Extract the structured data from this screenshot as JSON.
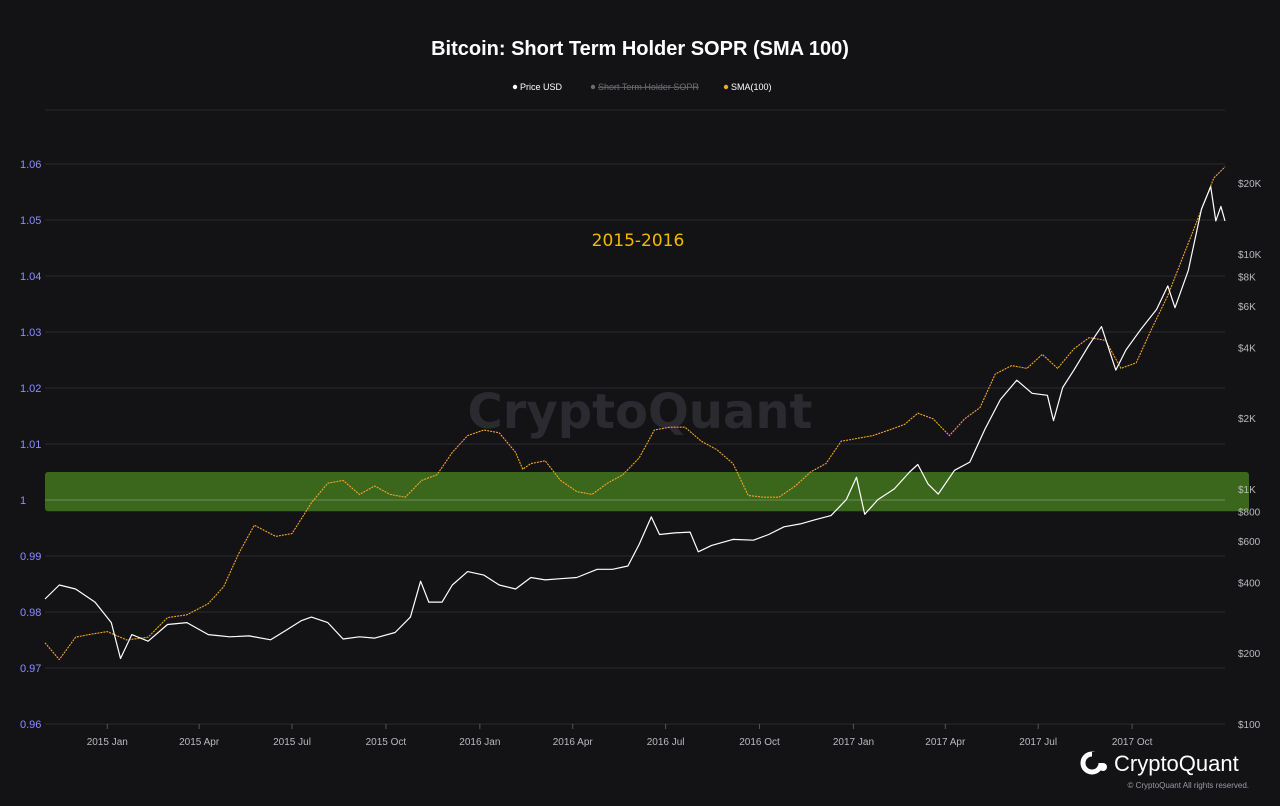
{
  "chart_data": {
    "type": "line",
    "title": "Bitcoin: Short Term Holder SOPR (SMA 100)",
    "legend": {
      "placement": "top-center",
      "items": [
        {
          "label": "Price USD",
          "color": "#ffffff",
          "visible": true
        },
        {
          "label": "Short Term Holder SOPR",
          "color": "#6b6b73",
          "visible": false
        },
        {
          "label": "SMA(100)",
          "color": "#f5a623",
          "visible": true
        }
      ]
    },
    "annotation": "2015-2016",
    "watermark": "CryptoQuant",
    "grid": true,
    "x_axis": {
      "range": [
        "2014-11-01",
        "2017-12-31"
      ],
      "ticks": [
        {
          "date": "2015-01-01",
          "label": "2015 Jan"
        },
        {
          "date": "2015-04-01",
          "label": "2015 Apr"
        },
        {
          "date": "2015-07-01",
          "label": "2015 Jul"
        },
        {
          "date": "2015-10-01",
          "label": "2015 Oct"
        },
        {
          "date": "2016-01-01",
          "label": "2016 Jan"
        },
        {
          "date": "2016-04-01",
          "label": "2016 Apr"
        },
        {
          "date": "2016-07-01",
          "label": "2016 Jul"
        },
        {
          "date": "2016-10-01",
          "label": "2016 Oct"
        },
        {
          "date": "2017-01-01",
          "label": "2017 Jan"
        },
        {
          "date": "2017-04-01",
          "label": "2017 Apr"
        },
        {
          "date": "2017-07-01",
          "label": "2017 Jul"
        },
        {
          "date": "2017-10-01",
          "label": "2017 Oct"
        }
      ]
    },
    "y_left": {
      "range": [
        0.96,
        1.06
      ],
      "ticks": [
        {
          "value": 1.06,
          "label": "1.06"
        },
        {
          "value": 1.05,
          "label": "1.05"
        },
        {
          "value": 1.04,
          "label": "1.04"
        },
        {
          "value": 1.03,
          "label": "1.03"
        },
        {
          "value": 1.02,
          "label": "1.02"
        },
        {
          "value": 1.01,
          "label": "1.01"
        },
        {
          "value": 1.0,
          "label": "1"
        },
        {
          "value": 0.99,
          "label": "0.99"
        },
        {
          "value": 0.98,
          "label": "0.98"
        },
        {
          "value": 0.97,
          "label": "0.97"
        },
        {
          "value": 0.96,
          "label": "0.96"
        }
      ]
    },
    "y_right": {
      "scale": "log",
      "range": [
        100,
        20000
      ],
      "ticks": [
        {
          "value": 20000,
          "label": "$20K"
        },
        {
          "value": 10000,
          "label": "$10K"
        },
        {
          "value": 8000,
          "label": "$8K"
        },
        {
          "value": 6000,
          "label": "$6K"
        },
        {
          "value": 4000,
          "label": "$4K"
        },
        {
          "value": 2000,
          "label": "$2K"
        },
        {
          "value": 1000,
          "label": "$1K"
        },
        {
          "value": 800,
          "label": "$800"
        },
        {
          "value": 600,
          "label": "$600"
        },
        {
          "value": 400,
          "label": "$400"
        },
        {
          "value": 200,
          "label": "$200"
        },
        {
          "value": 100,
          "label": "$100"
        }
      ]
    },
    "highlight_band": {
      "y_from": 0.998,
      "y_to": 1.005,
      "color": "#3d6b1e"
    },
    "series": [
      {
        "name": "SMA(100)",
        "axis": "left",
        "color": "#f5a623",
        "points": [
          [
            "2014-11-01",
            0.9745
          ],
          [
            "2014-11-15",
            0.9715
          ],
          [
            "2014-12-01",
            0.9755
          ],
          [
            "2014-12-15",
            0.976
          ],
          [
            "2015-01-01",
            0.9765
          ],
          [
            "2015-01-20",
            0.975
          ],
          [
            "2015-02-10",
            0.9755
          ],
          [
            "2015-03-01",
            0.979
          ],
          [
            "2015-03-20",
            0.9795
          ],
          [
            "2015-04-10",
            0.9815
          ],
          [
            "2015-04-25",
            0.9845
          ],
          [
            "2015-05-10",
            0.9905
          ],
          [
            "2015-05-25",
            0.9955
          ],
          [
            "2015-06-15",
            0.9935
          ],
          [
            "2015-07-01",
            0.994
          ],
          [
            "2015-07-20",
            0.9995
          ],
          [
            "2015-08-05",
            1.003
          ],
          [
            "2015-08-20",
            1.0035
          ],
          [
            "2015-09-05",
            1.001
          ],
          [
            "2015-09-20",
            1.0025
          ],
          [
            "2015-10-05",
            1.001
          ],
          [
            "2015-10-20",
            1.0005
          ],
          [
            "2015-11-05",
            1.0035
          ],
          [
            "2015-11-20",
            1.0045
          ],
          [
            "2015-12-05",
            1.0085
          ],
          [
            "2015-12-20",
            1.0115
          ],
          [
            "2016-01-05",
            1.0125
          ],
          [
            "2016-01-20",
            1.012
          ],
          [
            "2016-02-05",
            1.0085
          ],
          [
            "2016-02-12",
            1.0055
          ],
          [
            "2016-02-20",
            1.0065
          ],
          [
            "2016-03-05",
            1.007
          ],
          [
            "2016-03-20",
            1.0035
          ],
          [
            "2016-04-05",
            1.0015
          ],
          [
            "2016-04-20",
            1.001
          ],
          [
            "2016-05-05",
            1.003
          ],
          [
            "2016-05-20",
            1.0045
          ],
          [
            "2016-06-05",
            1.0075
          ],
          [
            "2016-06-20",
            1.0125
          ],
          [
            "2016-07-05",
            1.013
          ],
          [
            "2016-07-20",
            1.013
          ],
          [
            "2016-08-05",
            1.0105
          ],
          [
            "2016-08-20",
            1.009
          ],
          [
            "2016-09-05",
            1.0065
          ],
          [
            "2016-09-20",
            1.0008
          ],
          [
            "2016-10-05",
            1.0005
          ],
          [
            "2016-10-20",
            1.0005
          ],
          [
            "2016-11-05",
            1.0025
          ],
          [
            "2016-11-20",
            1.005
          ],
          [
            "2016-12-05",
            1.0065
          ],
          [
            "2016-12-20",
            1.0105
          ],
          [
            "2017-01-05",
            1.011
          ],
          [
            "2017-01-20",
            1.0115
          ],
          [
            "2017-02-05",
            1.0125
          ],
          [
            "2017-02-20",
            1.0135
          ],
          [
            "2017-03-05",
            1.0155
          ],
          [
            "2017-03-20",
            1.0145
          ],
          [
            "2017-04-05",
            1.0115
          ],
          [
            "2017-04-20",
            1.0145
          ],
          [
            "2017-05-05",
            1.0165
          ],
          [
            "2017-05-20",
            1.0225
          ],
          [
            "2017-06-05",
            1.024
          ],
          [
            "2017-06-20",
            1.0235
          ],
          [
            "2017-07-05",
            1.026
          ],
          [
            "2017-07-20",
            1.0235
          ],
          [
            "2017-08-05",
            1.027
          ],
          [
            "2017-08-20",
            1.029
          ],
          [
            "2017-09-05",
            1.0285
          ],
          [
            "2017-09-20",
            1.0235
          ],
          [
            "2017-10-05",
            1.0245
          ],
          [
            "2017-10-20",
            1.0305
          ],
          [
            "2017-11-05",
            1.0365
          ],
          [
            "2017-11-20",
            1.0435
          ],
          [
            "2017-12-05",
            1.0505
          ],
          [
            "2017-12-20",
            1.0575
          ],
          [
            "2017-12-31",
            1.0595
          ]
        ]
      },
      {
        "name": "Price USD",
        "axis": "right",
        "color": "#ffffff",
        "points": [
          [
            "2014-11-01",
            340
          ],
          [
            "2014-11-15",
            390
          ],
          [
            "2014-12-01",
            375
          ],
          [
            "2014-12-20",
            330
          ],
          [
            "2015-01-05",
            270
          ],
          [
            "2015-01-14",
            190
          ],
          [
            "2015-01-25",
            240
          ],
          [
            "2015-02-10",
            225
          ],
          [
            "2015-03-01",
            265
          ],
          [
            "2015-03-20",
            270
          ],
          [
            "2015-04-10",
            240
          ],
          [
            "2015-05-01",
            235
          ],
          [
            "2015-05-20",
            237
          ],
          [
            "2015-06-10",
            228
          ],
          [
            "2015-06-25",
            250
          ],
          [
            "2015-07-10",
            275
          ],
          [
            "2015-07-20",
            285
          ],
          [
            "2015-08-05",
            270
          ],
          [
            "2015-08-20",
            230
          ],
          [
            "2015-09-05",
            235
          ],
          [
            "2015-09-20",
            232
          ],
          [
            "2015-10-10",
            245
          ],
          [
            "2015-10-25",
            285
          ],
          [
            "2015-11-04",
            405
          ],
          [
            "2015-11-12",
            330
          ],
          [
            "2015-11-25",
            330
          ],
          [
            "2015-12-05",
            390
          ],
          [
            "2015-12-20",
            445
          ],
          [
            "2016-01-05",
            430
          ],
          [
            "2016-01-20",
            390
          ],
          [
            "2016-02-05",
            375
          ],
          [
            "2016-02-20",
            420
          ],
          [
            "2016-03-05",
            410
          ],
          [
            "2016-03-20",
            415
          ],
          [
            "2016-04-05",
            420
          ],
          [
            "2016-04-25",
            455
          ],
          [
            "2016-05-10",
            455
          ],
          [
            "2016-05-25",
            470
          ],
          [
            "2016-06-05",
            580
          ],
          [
            "2016-06-17",
            760
          ],
          [
            "2016-06-25",
            640
          ],
          [
            "2016-07-10",
            650
          ],
          [
            "2016-07-25",
            655
          ],
          [
            "2016-08-02",
            540
          ],
          [
            "2016-08-15",
            575
          ],
          [
            "2016-09-05",
            610
          ],
          [
            "2016-09-25",
            605
          ],
          [
            "2016-10-10",
            640
          ],
          [
            "2016-10-25",
            690
          ],
          [
            "2016-11-10",
            710
          ],
          [
            "2016-11-25",
            740
          ],
          [
            "2016-12-10",
            770
          ],
          [
            "2016-12-25",
            900
          ],
          [
            "2017-01-04",
            1120
          ],
          [
            "2017-01-12",
            780
          ],
          [
            "2017-01-25",
            900
          ],
          [
            "2017-02-10",
            1000
          ],
          [
            "2017-02-25",
            1180
          ],
          [
            "2017-03-05",
            1270
          ],
          [
            "2017-03-15",
            1050
          ],
          [
            "2017-03-25",
            950
          ],
          [
            "2017-04-10",
            1200
          ],
          [
            "2017-04-25",
            1300
          ],
          [
            "2017-05-10",
            1800
          ],
          [
            "2017-05-25",
            2400
          ],
          [
            "2017-06-10",
            2900
          ],
          [
            "2017-06-25",
            2550
          ],
          [
            "2017-07-10",
            2500
          ],
          [
            "2017-07-16",
            1950
          ],
          [
            "2017-07-25",
            2700
          ],
          [
            "2017-08-05",
            3200
          ],
          [
            "2017-08-20",
            4100
          ],
          [
            "2017-09-01",
            4900
          ],
          [
            "2017-09-15",
            3200
          ],
          [
            "2017-09-25",
            3900
          ],
          [
            "2017-10-10",
            4800
          ],
          [
            "2017-10-25",
            5800
          ],
          [
            "2017-11-05",
            7300
          ],
          [
            "2017-11-12",
            5900
          ],
          [
            "2017-11-25",
            8500
          ],
          [
            "2017-12-08",
            15500
          ],
          [
            "2017-12-17",
            19300
          ],
          [
            "2017-12-22",
            13800
          ],
          [
            "2017-12-27",
            15900
          ],
          [
            "2017-12-31",
            13800
          ]
        ]
      }
    ]
  },
  "footer": {
    "brand": "CryptoQuant",
    "copyright": "© CryptoQuant All rights reserved."
  }
}
